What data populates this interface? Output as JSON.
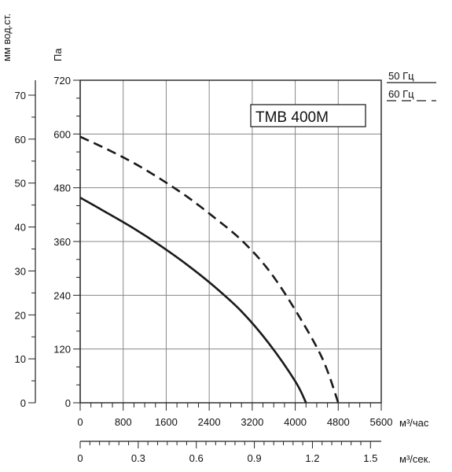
{
  "chart_data": {
    "type": "line",
    "model_label": "TMB 400M",
    "x_primary": {
      "unit_label": "м³/час",
      "ticks": [
        "0",
        "800",
        "1600",
        "2400",
        "3200",
        "4000",
        "4800",
        "5600"
      ],
      "range": [
        0,
        5600
      ]
    },
    "x_secondary": {
      "unit_label": "м³/сек.",
      "ticks": [
        "0",
        "0.3",
        "0.6",
        "0.9",
        "1.2",
        "1.5"
      ],
      "range": [
        0,
        1.5556
      ]
    },
    "y_primary": {
      "unit_label": "Па",
      "ticks": [
        "0",
        "120",
        "240",
        "360",
        "480",
        "600",
        "720"
      ],
      "range": [
        0,
        720
      ]
    },
    "y_secondary": {
      "unit_label": "мм вод.ст.",
      "ticks": [
        "0",
        "10",
        "20",
        "30",
        "40",
        "50",
        "60",
        "70"
      ],
      "range": [
        0,
        73.4
      ]
    },
    "grid": true,
    "legend": {
      "position": "top-right",
      "items": [
        {
          "label": "50 Гц",
          "style": "solid"
        },
        {
          "label": "60 Гц",
          "style": "dashed"
        }
      ]
    },
    "series": [
      {
        "name": "50 Гц",
        "style": "solid",
        "x": [
          0,
          500,
          1000,
          1500,
          2000,
          2500,
          3000,
          3500,
          4000,
          4200
        ],
        "y": [
          458,
          424,
          389,
          350,
          307,
          259,
          204,
          134,
          48,
          0
        ]
      },
      {
        "name": "60 Гц",
        "style": "dashed",
        "x": [
          0,
          500,
          1000,
          1500,
          2000,
          2500,
          3000,
          3500,
          4000,
          4500,
          4800
        ],
        "y": [
          594,
          566,
          535,
          499,
          459,
          413,
          363,
          297,
          207,
          100,
          0
        ]
      }
    ],
    "colors": {
      "line": "#1a1a1a",
      "grid": "#888888",
      "frame": "#222222"
    }
  }
}
